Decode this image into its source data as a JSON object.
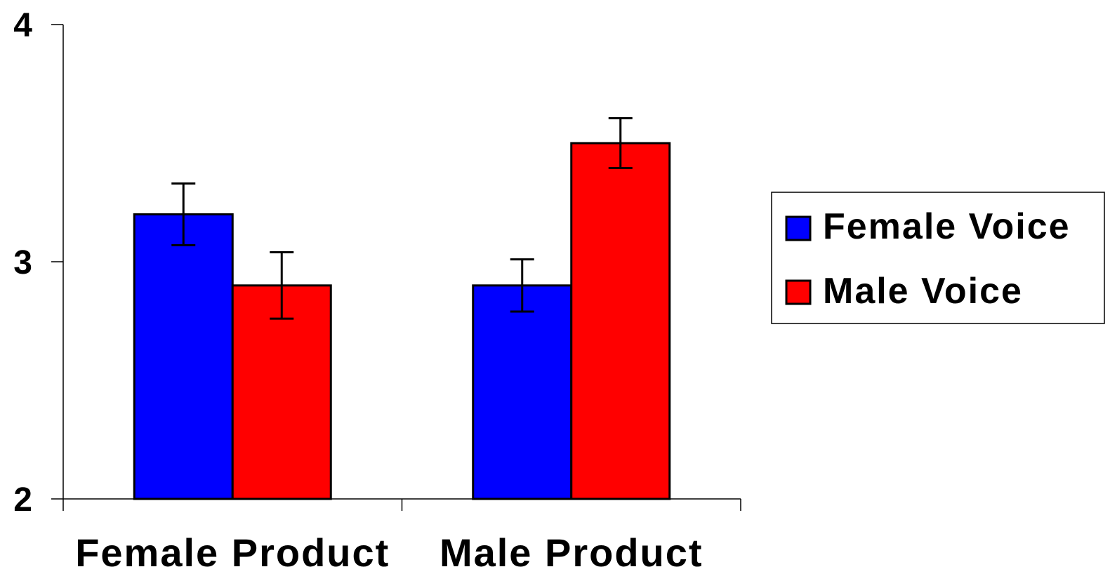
{
  "chart_data": {
    "type": "bar",
    "categories": [
      "Female Product",
      "Male Product"
    ],
    "series": [
      {
        "name": "Female Voice",
        "color": "#0000ff",
        "values": [
          3.2,
          2.9
        ],
        "error": [
          0.13,
          0.11
        ]
      },
      {
        "name": "Male Voice",
        "color": "#ff0000",
        "values": [
          2.9,
          3.5
        ],
        "error": [
          0.14,
          0.105
        ]
      }
    ],
    "ylim": [
      2,
      4
    ],
    "yticks": [
      "2",
      "3",
      "4"
    ],
    "title": "",
    "xlabel": "",
    "ylabel": "",
    "grid": false,
    "legend_position": "right"
  }
}
